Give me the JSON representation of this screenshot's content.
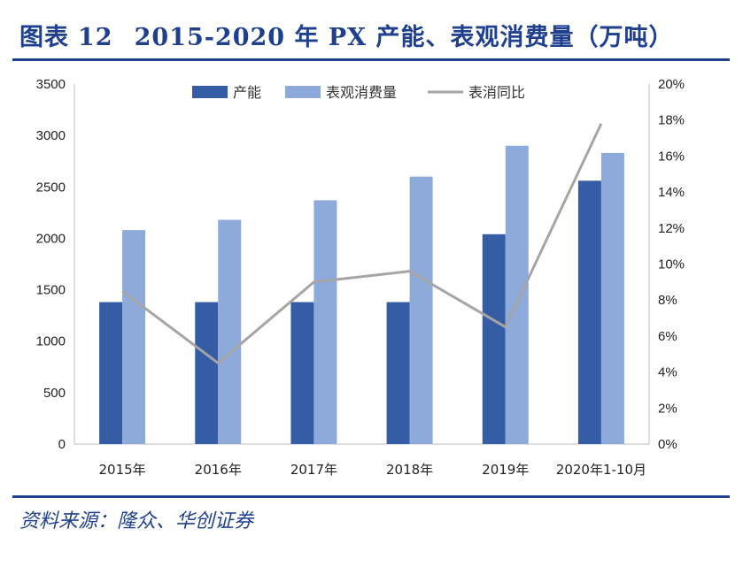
{
  "header": {
    "label": "图表",
    "number": "12",
    "title": "2015-2020 年 PX 产能、表观消费量（万吨）"
  },
  "footer": {
    "source": "资料来源：隆众、华创证券"
  },
  "colors": {
    "capacity": "#355da6",
    "consumption": "#8eaadb",
    "yoy": "#a5a5a5",
    "accent": "#1f3f8f"
  },
  "chart_data": {
    "type": "bar",
    "categories": [
      "2015年",
      "2016年",
      "2017年",
      "2018年",
      "2019年",
      "2020年1-10月"
    ],
    "series": [
      {
        "name": "产能",
        "type": "bar",
        "axis": "left",
        "values": [
          1380,
          1380,
          1380,
          1380,
          2040,
          2560
        ]
      },
      {
        "name": "表观消费量",
        "type": "bar",
        "axis": "left",
        "values": [
          2080,
          2180,
          2370,
          2600,
          2900,
          2830
        ]
      },
      {
        "name": "表消同比",
        "type": "line",
        "axis": "right",
        "values": [
          0.085,
          0.045,
          0.09,
          0.096,
          0.065,
          0.178
        ]
      }
    ],
    "y_left": {
      "min": 0,
      "max": 3500,
      "ticks": [
        0,
        500,
        1000,
        1500,
        2000,
        2500,
        3000,
        3500
      ]
    },
    "y_right": {
      "min": 0,
      "max": 0.2,
      "ticks": [
        "0%",
        "2%",
        "4%",
        "6%",
        "8%",
        "10%",
        "12%",
        "14%",
        "16%",
        "18%",
        "20%"
      ]
    },
    "legend": {
      "position": "top"
    }
  }
}
